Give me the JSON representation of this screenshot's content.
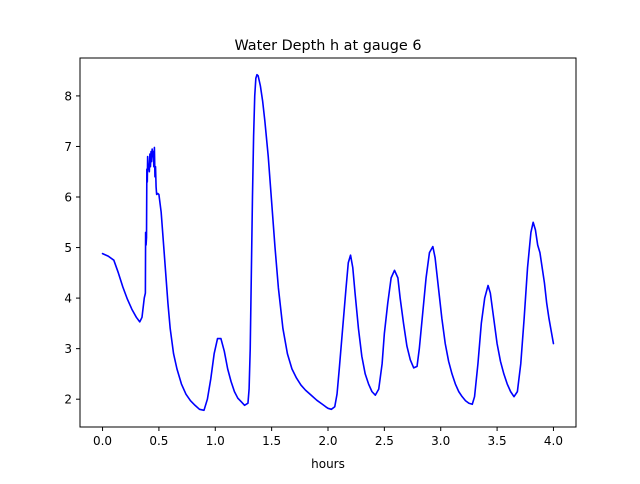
{
  "chart_data": {
    "type": "line",
    "title": "Water Depth h at gauge 6",
    "xlabel": "hours",
    "ylabel": "",
    "xlim": [
      -0.2,
      4.2
    ],
    "ylim": [
      1.45,
      8.75
    ],
    "xticks": [
      0.0,
      0.5,
      1.0,
      1.5,
      2.0,
      2.5,
      3.0,
      3.5,
      4.0
    ],
    "xtick_labels": [
      "0.0",
      "0.5",
      "1.0",
      "1.5",
      "2.0",
      "2.5",
      "3.0",
      "3.5",
      "4.0"
    ],
    "yticks": [
      2,
      3,
      4,
      5,
      6,
      7,
      8
    ],
    "ytick_labels": [
      "2",
      "3",
      "4",
      "5",
      "6",
      "7",
      "8"
    ],
    "grid": false,
    "legend": "none",
    "series": [
      {
        "color": "#0000ff",
        "x": [
          0.0,
          0.05,
          0.1,
          0.14,
          0.18,
          0.22,
          0.26,
          0.3,
          0.33,
          0.35,
          0.37,
          0.38,
          0.382,
          0.386,
          0.39,
          0.393,
          0.397,
          0.4,
          0.405,
          0.41,
          0.415,
          0.42,
          0.425,
          0.43,
          0.435,
          0.44,
          0.445,
          0.45,
          0.455,
          0.46,
          0.465,
          0.47,
          0.475,
          0.48,
          0.49,
          0.5,
          0.52,
          0.55,
          0.58,
          0.6,
          0.63,
          0.66,
          0.7,
          0.74,
          0.78,
          0.82,
          0.86,
          0.9,
          0.93,
          0.96,
          0.99,
          1.02,
          1.05,
          1.08,
          1.11,
          1.14,
          1.17,
          1.2,
          1.23,
          1.26,
          1.29,
          1.3,
          1.31,
          1.32,
          1.33,
          1.34,
          1.35,
          1.36,
          1.37,
          1.38,
          1.39,
          1.4,
          1.42,
          1.44,
          1.47,
          1.5,
          1.53,
          1.56,
          1.6,
          1.64,
          1.68,
          1.72,
          1.76,
          1.8,
          1.85,
          1.9,
          1.95,
          1.98,
          2.0,
          2.03,
          2.06,
          2.08,
          2.1,
          2.13,
          2.16,
          2.18,
          2.2,
          2.22,
          2.24,
          2.27,
          2.3,
          2.33,
          2.36,
          2.39,
          2.42,
          2.45,
          2.48,
          2.5,
          2.53,
          2.56,
          2.59,
          2.62,
          2.64,
          2.67,
          2.7,
          2.73,
          2.76,
          2.79,
          2.81,
          2.84,
          2.87,
          2.9,
          2.93,
          2.95,
          2.98,
          3.01,
          3.04,
          3.07,
          3.1,
          3.13,
          3.16,
          3.19,
          3.22,
          3.25,
          3.28,
          3.3,
          3.33,
          3.36,
          3.39,
          3.42,
          3.44,
          3.47,
          3.5,
          3.53,
          3.56,
          3.59,
          3.62,
          3.65,
          3.68,
          3.71,
          3.74,
          3.77,
          3.8,
          3.82,
          3.84,
          3.86,
          3.88,
          3.9,
          3.92,
          3.94,
          3.96,
          3.98,
          4.0
        ],
        "y": [
          4.88,
          4.83,
          4.75,
          4.5,
          4.22,
          3.98,
          3.78,
          3.62,
          3.53,
          3.62,
          4.0,
          4.1,
          5.3,
          5.05,
          5.2,
          6.55,
          6.3,
          6.8,
          6.55,
          6.6,
          6.5,
          6.85,
          6.6,
          6.9,
          6.7,
          6.95,
          6.8,
          6.9,
          6.6,
          6.98,
          6.4,
          6.6,
          6.2,
          6.05,
          6.07,
          6.05,
          5.7,
          4.8,
          3.9,
          3.4,
          2.9,
          2.6,
          2.3,
          2.1,
          1.97,
          1.88,
          1.8,
          1.78,
          2.0,
          2.4,
          2.9,
          3.2,
          3.2,
          2.95,
          2.6,
          2.35,
          2.15,
          2.02,
          1.95,
          1.88,
          1.92,
          2.2,
          3.0,
          4.5,
          6.0,
          7.2,
          8.0,
          8.35,
          8.42,
          8.4,
          8.3,
          8.2,
          7.9,
          7.5,
          6.8,
          5.9,
          5.0,
          4.2,
          3.4,
          2.9,
          2.6,
          2.42,
          2.28,
          2.18,
          2.08,
          1.98,
          1.9,
          1.85,
          1.82,
          1.8,
          1.85,
          2.1,
          2.6,
          3.4,
          4.2,
          4.7,
          4.85,
          4.6,
          4.1,
          3.4,
          2.85,
          2.5,
          2.3,
          2.15,
          2.08,
          2.2,
          2.7,
          3.3,
          3.9,
          4.4,
          4.55,
          4.4,
          4.0,
          3.5,
          3.05,
          2.78,
          2.62,
          2.65,
          3.0,
          3.7,
          4.4,
          4.9,
          5.02,
          4.8,
          4.2,
          3.6,
          3.1,
          2.75,
          2.5,
          2.3,
          2.15,
          2.05,
          1.97,
          1.92,
          1.9,
          2.05,
          2.7,
          3.5,
          4.0,
          4.25,
          4.1,
          3.6,
          3.1,
          2.75,
          2.5,
          2.3,
          2.15,
          2.05,
          2.15,
          2.7,
          3.6,
          4.6,
          5.3,
          5.5,
          5.35,
          5.05,
          4.9,
          4.6,
          4.3,
          3.9,
          3.6,
          3.35,
          3.1
        ]
      }
    ]
  }
}
